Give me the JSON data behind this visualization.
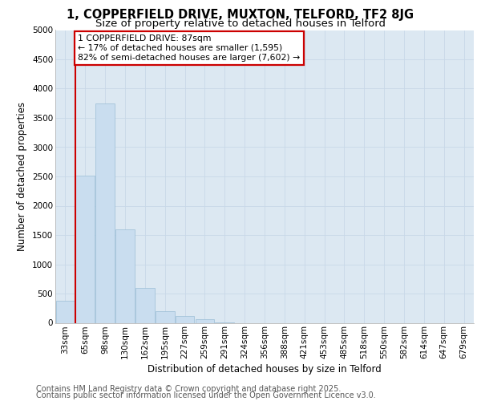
{
  "title_line1": "1, COPPERFIELD DRIVE, MUXTON, TELFORD, TF2 8JG",
  "title_line2": "Size of property relative to detached houses in Telford",
  "xlabel": "Distribution of detached houses by size in Telford",
  "ylabel": "Number of detached properties",
  "categories": [
    "33sqm",
    "65sqm",
    "98sqm",
    "130sqm",
    "162sqm",
    "195sqm",
    "227sqm",
    "259sqm",
    "291sqm",
    "324sqm",
    "356sqm",
    "388sqm",
    "421sqm",
    "453sqm",
    "485sqm",
    "518sqm",
    "550sqm",
    "582sqm",
    "614sqm",
    "647sqm",
    "679sqm"
  ],
  "values": [
    370,
    2520,
    3750,
    1600,
    590,
    200,
    120,
    60,
    10,
    0,
    0,
    0,
    0,
    0,
    0,
    0,
    0,
    0,
    0,
    0,
    0
  ],
  "bar_color": "#c9ddef",
  "bar_edge_color": "#9bbdd6",
  "annotation_text": "1 COPPERFIELD DRIVE: 87sqm\n← 17% of detached houses are smaller (1,595)\n82% of semi-detached houses are larger (7,602) →",
  "vline_color": "#cc0000",
  "annotation_box_edgecolor": "#cc0000",
  "ylim": [
    0,
    5000
  ],
  "yticks": [
    0,
    500,
    1000,
    1500,
    2000,
    2500,
    3000,
    3500,
    4000,
    4500,
    5000
  ],
  "grid_color": "#c8d8e8",
  "background_color": "#dce8f2",
  "footer_line1": "Contains HM Land Registry data © Crown copyright and database right 2025.",
  "footer_line2": "Contains public sector information licensed under the Open Government Licence v3.0.",
  "title_fontsize": 10.5,
  "subtitle_fontsize": 9.5,
  "axis_label_fontsize": 8.5,
  "tick_fontsize": 7.5,
  "footer_fontsize": 7.0,
  "annot_fontsize": 7.8
}
